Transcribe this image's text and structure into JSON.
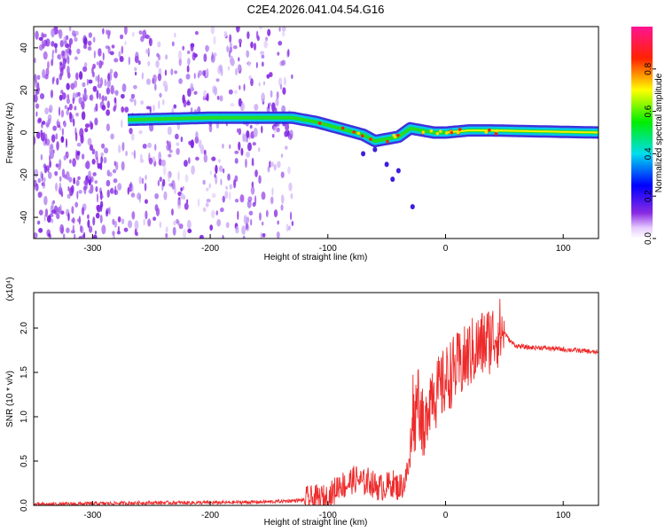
{
  "title": "C2E4.2026.041.04.54.G16",
  "chart_data": [
    {
      "type": "heatmap",
      "xlabel": "Height of straight line (km)",
      "ylabel": "Frequency (Hz)",
      "xlim": [
        -350,
        130
      ],
      "ylim": [
        -50,
        50
      ],
      "xticks": [
        -300,
        -200,
        -100,
        0,
        100
      ],
      "xtick_labels": [
        "-300",
        "-200",
        "-100",
        "0",
        "100"
      ],
      "yticks": [
        -40,
        -20,
        0,
        20,
        40
      ],
      "ytick_labels": [
        "-40",
        "-20",
        "0",
        "20",
        "40"
      ],
      "colorbar": {
        "label": "Normalized spectral amplitude",
        "range": [
          0,
          1
        ],
        "ticks": [
          0.0,
          0.2,
          0.4,
          0.6,
          0.8
        ],
        "tick_labels": [
          "0.0",
          "0.2",
          "0.4",
          "0.6",
          "0.8"
        ]
      },
      "ridge": {
        "description_points_x": [
          -270,
          -200,
          -130,
          -110,
          -90,
          -70,
          -60,
          -50,
          -40,
          -30,
          -20,
          -10,
          0,
          20,
          40,
          130
        ],
        "frequency_hz": [
          6,
          7,
          7,
          5,
          2,
          -1,
          -4,
          -3,
          -2,
          2,
          1,
          0,
          0,
          1,
          1,
          0
        ]
      }
    },
    {
      "type": "line",
      "xlabel": "Height of straight line (km)",
      "ylabel": "SNR (10 * v/v)",
      "yscale_label": "(x10⁴)",
      "xlim": [
        -350,
        130
      ],
      "ylim": [
        0,
        2.4
      ],
      "xticks": [
        -300,
        -200,
        -100,
        0,
        100
      ],
      "xtick_labels": [
        "-300",
        "-200",
        "-100",
        "0",
        "100"
      ],
      "yticks": [
        0.0,
        0.5,
        1.0,
        1.5,
        2.0
      ],
      "ytick_labels": [
        "0.0",
        "0.5",
        "1.0",
        "1.5",
        "2.0"
      ],
      "series": [
        {
          "name": "SNR",
          "color": "#ee2b2b",
          "x": [
            -350,
            -300,
            -250,
            -200,
            -150,
            -120,
            -100,
            -95,
            -90,
            -85,
            -80,
            -75,
            -70,
            -65,
            -60,
            -55,
            -50,
            -45,
            -40,
            -35,
            -30,
            -28,
            -26,
            -24,
            -22,
            -20,
            -18,
            -16,
            -14,
            -12,
            -10,
            -8,
            -5,
            0,
            5,
            10,
            15,
            20,
            25,
            30,
            35,
            40,
            45,
            50,
            55,
            60,
            70,
            80,
            90,
            100,
            110,
            120,
            130
          ],
          "values": [
            0.01,
            0.02,
            0.03,
            0.03,
            0.04,
            0.06,
            0.08,
            0.15,
            0.25,
            0.22,
            0.28,
            0.3,
            0.25,
            0.28,
            0.22,
            0.2,
            0.22,
            0.25,
            0.2,
            0.25,
            0.5,
            1.2,
            0.9,
            1.4,
            1.1,
            1.0,
            0.6,
            1.1,
            1.2,
            1.3,
            1.35,
            1.25,
            1.3,
            1.4,
            1.5,
            1.55,
            1.6,
            1.7,
            1.75,
            1.8,
            1.85,
            1.9,
            1.95,
            1.95,
            1.85,
            1.8,
            1.78,
            1.78,
            1.77,
            1.76,
            1.75,
            1.74,
            1.72
          ]
        }
      ]
    }
  ]
}
